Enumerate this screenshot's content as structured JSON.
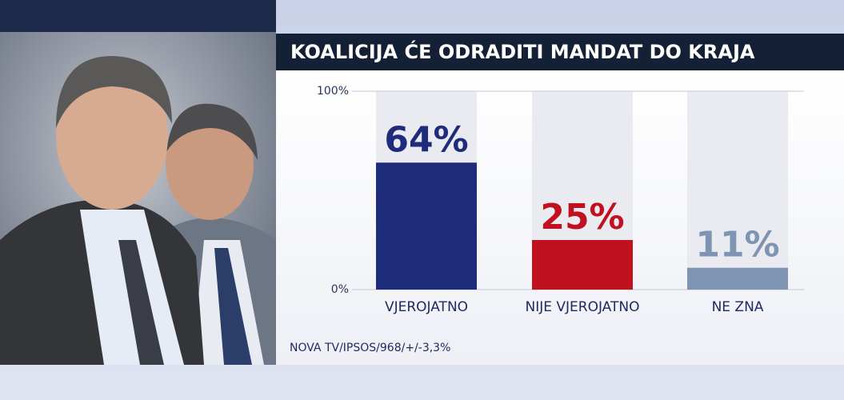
{
  "chart_data": {
    "type": "bar",
    "title": "KOALICIJA ĆE ODRADITI MANDAT DO KRAJA",
    "categories": [
      "VJEROJATNO",
      "NIJE VJEROJATNO",
      "NE ZNA"
    ],
    "values": [
      64,
      25,
      11
    ],
    "value_labels": [
      "64%",
      "25%",
      "11%"
    ],
    "colors": [
      "#1f2b7b",
      "#c0111f",
      "#7f94b2"
    ],
    "ylim": [
      0,
      100
    ],
    "yticks": [
      {
        "value": 0,
        "label": "0%"
      },
      {
        "value": 100,
        "label": "100%"
      }
    ],
    "source": "NOVA TV/IPSOS/968/+/-3,3%"
  }
}
